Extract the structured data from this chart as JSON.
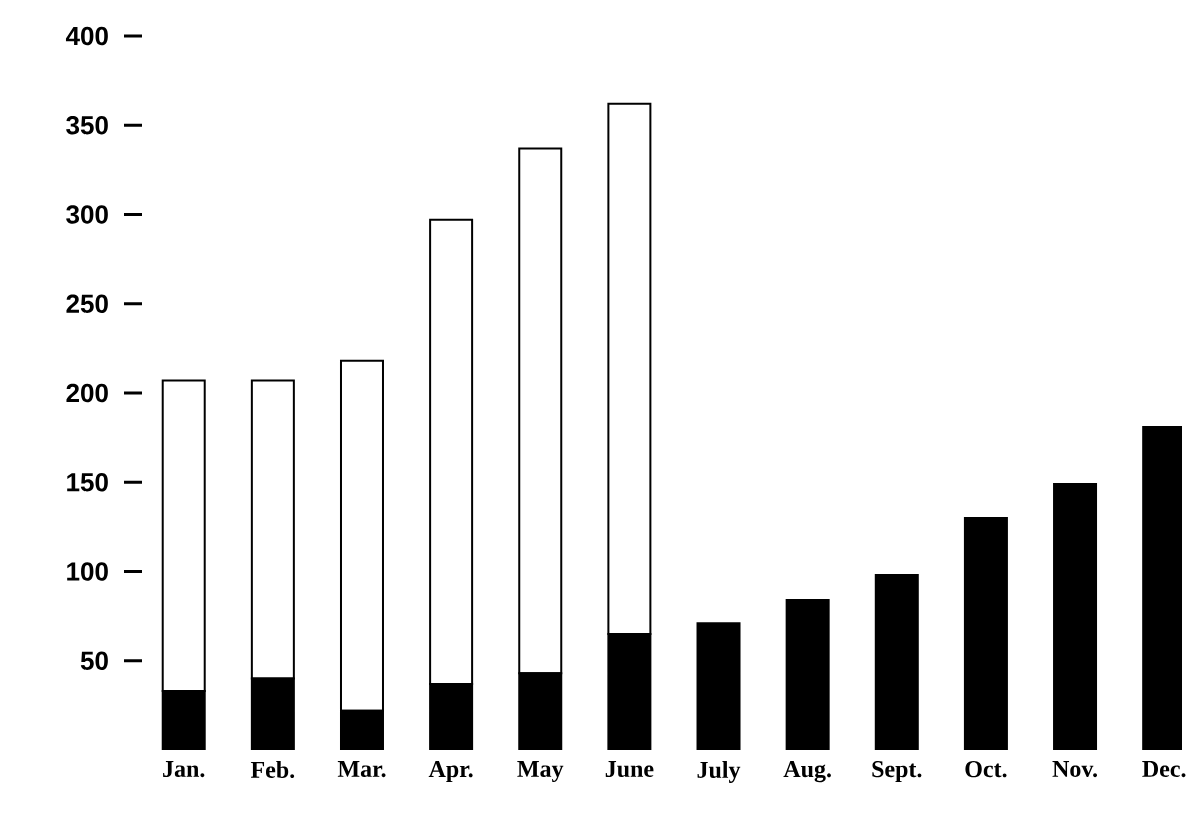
{
  "chart_data": {
    "type": "bar",
    "stacked": true,
    "categories": [
      "Jan.",
      "Feb.",
      "Mar.",
      "Apr.",
      "May",
      "June",
      "July",
      "Aug.",
      "Sept.",
      "Oct.",
      "Nov.",
      "Dec."
    ],
    "series": [
      {
        "color": "#000000",
        "values": [
          33,
          40,
          22,
          37,
          43,
          65,
          71,
          84,
          98,
          130,
          149,
          181
        ]
      },
      {
        "color": "#ffffff",
        "values": [
          174,
          167,
          196,
          260,
          294,
          297,
          null,
          null,
          null,
          null,
          null,
          null
        ]
      }
    ],
    "ylim": [
      0,
      400
    ],
    "yticks": [
      50,
      100,
      150,
      200,
      250,
      300,
      350,
      400
    ]
  }
}
